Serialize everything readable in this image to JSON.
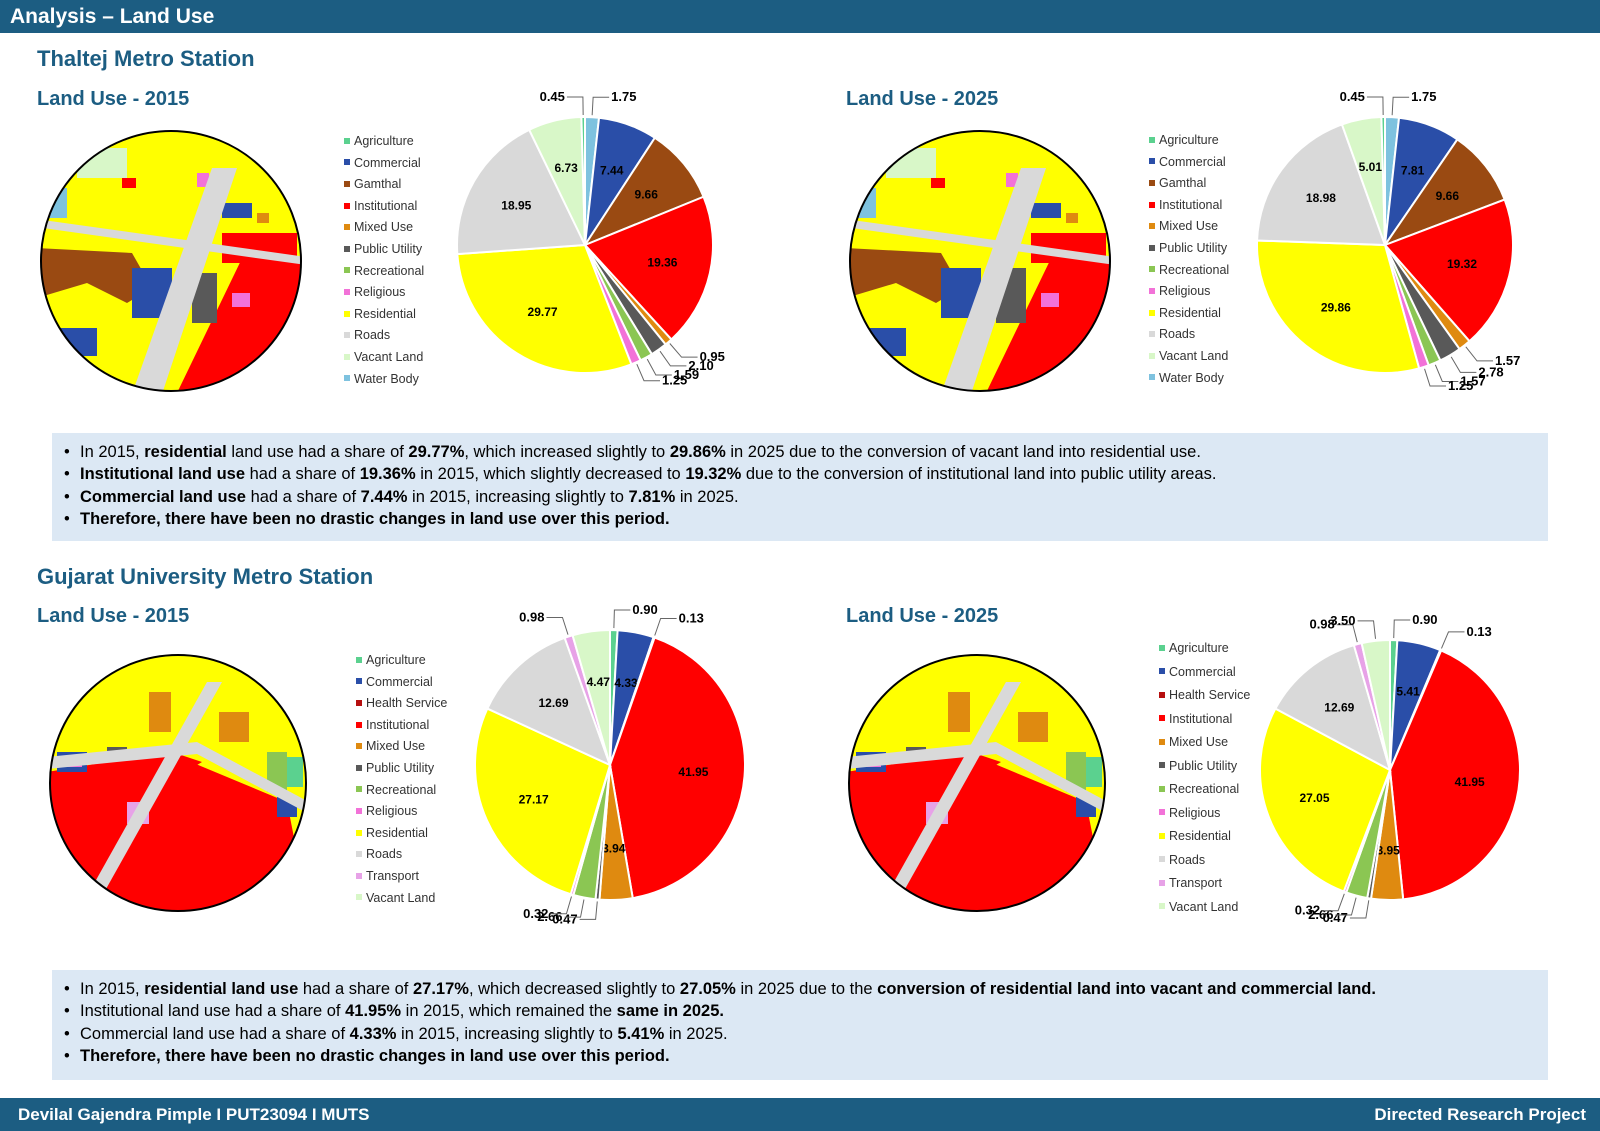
{
  "header": {
    "title": "Analysis – Land Use"
  },
  "footer": {
    "left": "Devilal Gajendra Pimple I PUT23094 I MUTS",
    "right": "Directed Research Project"
  },
  "colors": {
    "Agriculture": "#5bd18f",
    "Commercial": "#2a4ea8",
    "Gamthal": "#9a4a12",
    "Health Service": "#b60f0f",
    "Institutional": "#ff0000",
    "Mixed Use": "#df8a10",
    "Public Utility": "#595959",
    "Recreational": "#8bc653",
    "Religious": "#f272d8",
    "Residential": "#ffff00",
    "Roads": "#d9d9d9",
    "Vacant Land": "#d8f7c8",
    "Water Body": "#7ec2df",
    "Transport": "#e7a2e7"
  },
  "sections": [
    {
      "title": "Thaltej Metro Station",
      "legend": [
        "Agriculture",
        "Commercial",
        "Gamthal",
        "Institutional",
        "Mixed Use",
        "Public Utility",
        "Recreational",
        "Religious",
        "Residential",
        "Roads",
        "Vacant Land",
        "Water Body"
      ],
      "charts": [
        {
          "subtitle": "Land Use - 2015",
          "map_icon": "land-use-map-thaltej-2015"
        },
        {
          "subtitle": "Land Use - 2025",
          "map_icon": "land-use-map-thaltej-2025"
        }
      ],
      "notes": [
        [
          {
            "t": "In 2015, "
          },
          {
            "t": "residential",
            "b": true
          },
          {
            "t": " land use had a share of "
          },
          {
            "t": "29.77%",
            "b": true
          },
          {
            "t": ", which increased slightly to "
          },
          {
            "t": "29.86%",
            "b": true
          },
          {
            "t": " in 2025 due to the conversion of vacant land into residential use."
          }
        ],
        [
          {
            "t": "Institutional land use",
            "b": true
          },
          {
            "t": " had a share of "
          },
          {
            "t": "19.36%",
            "b": true
          },
          {
            "t": " in 2015, which slightly decreased to "
          },
          {
            "t": "19.32%",
            "b": true
          },
          {
            "t": " due to the conversion of institutional land into public utility areas."
          }
        ],
        [
          {
            "t": "Commercial land use",
            "b": true
          },
          {
            "t": " had a share of "
          },
          {
            "t": "7.44%",
            "b": true
          },
          {
            "t": " in 2015, increasing slightly to "
          },
          {
            "t": "7.81%",
            "b": true
          },
          {
            "t": " in 2025."
          }
        ],
        [
          {
            "t": "Therefore, there have been no drastic changes in land use over this period.",
            "b": true
          }
        ]
      ]
    },
    {
      "title": "Gujarat University Metro Station",
      "legend": [
        "Agriculture",
        "Commercial",
        "Health Service",
        "Institutional",
        "Mixed Use",
        "Public Utility",
        "Recreational",
        "Religious",
        "Residential",
        "Roads",
        "Transport",
        "Vacant Land"
      ],
      "charts": [
        {
          "subtitle": "Land Use - 2015",
          "map_icon": "land-use-map-gujarat-university-2015"
        },
        {
          "subtitle": "Land Use - 2025",
          "map_icon": "land-use-map-gujarat-university-2025"
        }
      ],
      "notes": [
        [
          {
            "t": "In 2015, "
          },
          {
            "t": "residential land use",
            "b": true
          },
          {
            "t": " had a share of "
          },
          {
            "t": "27.17%",
            "b": true
          },
          {
            "t": ", which decreased slightly to "
          },
          {
            "t": "27.05%",
            "b": true
          },
          {
            "t": " in 2025 due to the "
          },
          {
            "t": "conversion of residential land into vacant and commercial land.",
            "b": true
          }
        ],
        [
          {
            "t": "Institutional land use had a share of "
          },
          {
            "t": "41.95%",
            "b": true
          },
          {
            "t": " in 2015, which remained the "
          },
          {
            "t": "same in 2025.",
            "b": true
          }
        ],
        [
          {
            "t": "Commercial land use had a share of "
          },
          {
            "t": "4.33%",
            "b": true
          },
          {
            "t": " in 2015, increasing slightly to "
          },
          {
            "t": "5.41%",
            "b": true
          },
          {
            "t": " in 2025."
          }
        ],
        [
          {
            "t": "Therefore, there have been no drastic changes in land use over this period.",
            "b": true
          }
        ]
      ]
    }
  ],
  "chart_data": [
    {
      "type": "pie",
      "title": "Land Use - 2015",
      "categories": [
        "Water Body",
        "Commercial",
        "Gamthal",
        "Institutional",
        "Mixed Use",
        "Public Utility",
        "Recreational",
        "Religious",
        "Residential",
        "Roads",
        "Vacant Land",
        "Agriculture"
      ],
      "values": [
        1.75,
        7.44,
        9.66,
        19.36,
        0.95,
        2.1,
        1.59,
        1.25,
        29.77,
        18.95,
        6.73,
        0.45
      ],
      "value_labels": [
        "1.75",
        "7.44",
        "9.66",
        "19.36",
        "0.95",
        "2.10",
        "1.59",
        "1.25",
        "29.77",
        "18.95",
        "6.73",
        "0.45"
      ]
    },
    {
      "type": "pie",
      "title": "Land Use - 2025",
      "categories": [
        "Water Body",
        "Commercial",
        "Gamthal",
        "Institutional",
        "Mixed Use",
        "Public Utility",
        "Recreational",
        "Religious",
        "Residential",
        "Roads",
        "Vacant Land",
        "Agriculture"
      ],
      "values": [
        1.75,
        7.81,
        9.66,
        19.32,
        1.57,
        2.78,
        1.57,
        1.25,
        29.86,
        18.98,
        5.01,
        0.45
      ],
      "value_labels": [
        "1.75",
        "7.81",
        "9.66",
        "19.32",
        "1.57",
        "2.78",
        "1.57",
        "1.25",
        "29.86",
        "18.98",
        "5.01",
        "0.45"
      ]
    },
    {
      "type": "pie",
      "title": "Land Use - 2015",
      "categories": [
        "Agriculture",
        "Commercial",
        "Health Service",
        "Institutional",
        "Mixed Use",
        "Public Utility",
        "Recreational",
        "Religious",
        "Residential",
        "Roads",
        "Transport",
        "Vacant Land"
      ],
      "values": [
        0.9,
        4.33,
        0.13,
        41.95,
        3.94,
        0.47,
        2.66,
        0.32,
        27.17,
        12.69,
        0.98,
        4.47
      ],
      "value_labels": [
        "0.90",
        "4.33",
        "0.13",
        "41.95",
        "3.94",
        "0.47",
        "2.66",
        "0.32",
        "27.17",
        "12.69",
        "0.98",
        "4.47"
      ]
    },
    {
      "type": "pie",
      "title": "Land Use - 2025",
      "categories": [
        "Agriculture",
        "Commercial",
        "Health Service",
        "Institutional",
        "Mixed Use",
        "Public Utility",
        "Recreational",
        "Religious",
        "Residential",
        "Roads",
        "Transport",
        "Vacant Land"
      ],
      "values": [
        0.9,
        5.41,
        0.13,
        41.95,
        3.95,
        0.47,
        2.66,
        0.32,
        27.05,
        12.69,
        0.98,
        3.5
      ],
      "value_labels": [
        "0.90",
        "5.41",
        "0.13",
        "41.95",
        "3.95",
        "0.47",
        "2.66",
        "0.32",
        "27.05",
        "12.69",
        "0.98",
        "3.50"
      ]
    }
  ]
}
